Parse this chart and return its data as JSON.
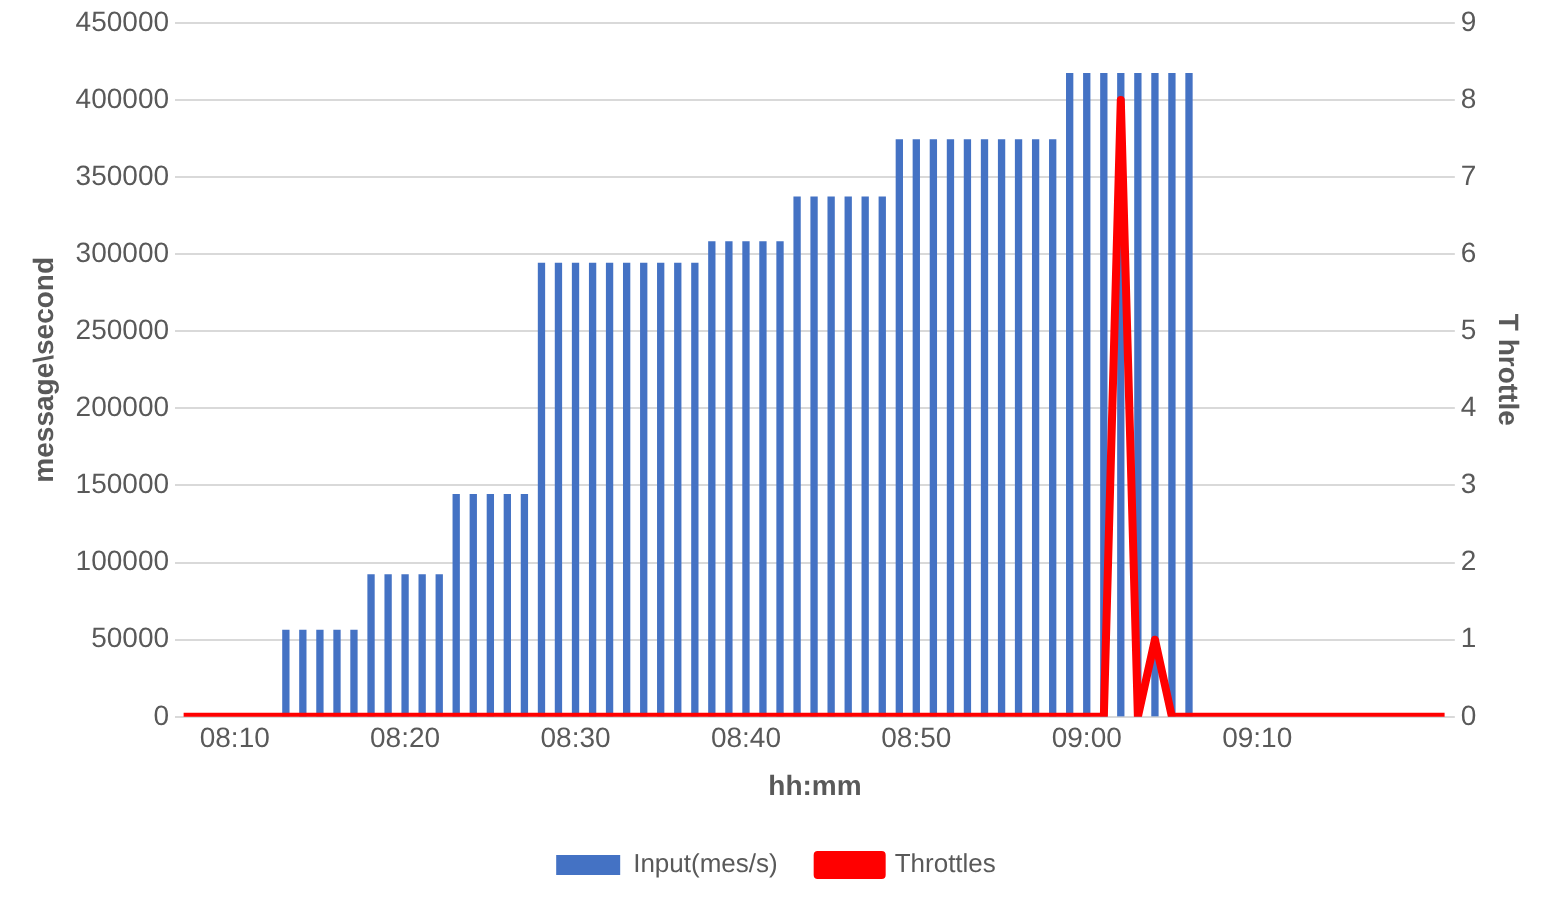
{
  "chart_data": {
    "type": "bar",
    "xlabel": "hh:mm",
    "ylabel": "message\\second",
    "y2label": "T hrottle",
    "xlim": [
      8.1083,
      9.36
    ],
    "xticks": [
      {
        "value": 8.1667,
        "label": "08:10"
      },
      {
        "value": 8.3333,
        "label": "08:20"
      },
      {
        "value": 8.5,
        "label": "08:30"
      },
      {
        "value": 8.6667,
        "label": "08:40"
      },
      {
        "value": 8.8333,
        "label": "08:50"
      },
      {
        "value": 9,
        "label": "09:00"
      },
      {
        "value": 9.1667,
        "label": "09:10"
      }
    ],
    "ylim": [
      0,
      450000
    ],
    "yticks": [
      0,
      50000,
      100000,
      150000,
      200000,
      250000,
      300000,
      350000,
      400000,
      450000
    ],
    "y2lim": [
      0,
      9
    ],
    "y2ticks": [
      0,
      1,
      2,
      3,
      4,
      5,
      6,
      7,
      8,
      9
    ],
    "grid": "y",
    "legend": "bottom",
    "marker": "none",
    "series": [
      {
        "name": "Input(mes/s)",
        "color": "#4472c4",
        "x": [
          8.2167,
          8.2333,
          8.25,
          8.2667,
          8.2833,
          8.3,
          8.3167,
          8.3333,
          8.35,
          8.3667,
          8.3833,
          8.4,
          8.4167,
          8.4333,
          8.45,
          8.4667,
          8.4833,
          8.5,
          8.5167,
          8.5333,
          8.55,
          8.5667,
          8.5833,
          8.6,
          8.6167,
          8.6333,
          8.65,
          8.6667,
          8.6833,
          8.7,
          8.7167,
          8.7333,
          8.75,
          8.7667,
          8.7833,
          8.8,
          8.8167,
          8.8333,
          8.85,
          8.8667,
          8.8833,
          8.9,
          8.9167,
          8.9333,
          8.95,
          8.9667,
          8.9833,
          9,
          9.0167,
          9.0333,
          9.05,
          9.0667,
          9.0833,
          9.1
        ],
        "values": [
          56000,
          56000,
          56000,
          56000,
          56000,
          92000,
          92000,
          92000,
          92000,
          92000,
          144000,
          144000,
          144000,
          144000,
          144000,
          294000,
          294000,
          294000,
          294000,
          294000,
          294000,
          294000,
          294000,
          294000,
          294000,
          308000,
          308000,
          308000,
          308000,
          308000,
          337000,
          337000,
          337000,
          337000,
          337000,
          337000,
          374000,
          374000,
          374000,
          374000,
          374000,
          374000,
          374000,
          374000,
          374000,
          374000,
          417000,
          417000,
          417000,
          417000,
          417000,
          417000,
          417000,
          417000
        ]
      },
      {
        "name": "Throttles",
        "type": "line",
        "axis": "y2",
        "color": "#ff0000",
        "x": [
          8.1167,
          9.0167,
          9.0333,
          9.05,
          9.0667,
          9.0833,
          9.35
        ],
        "values": [
          0,
          0,
          8,
          0,
          1,
          0,
          0
        ]
      }
    ]
  }
}
